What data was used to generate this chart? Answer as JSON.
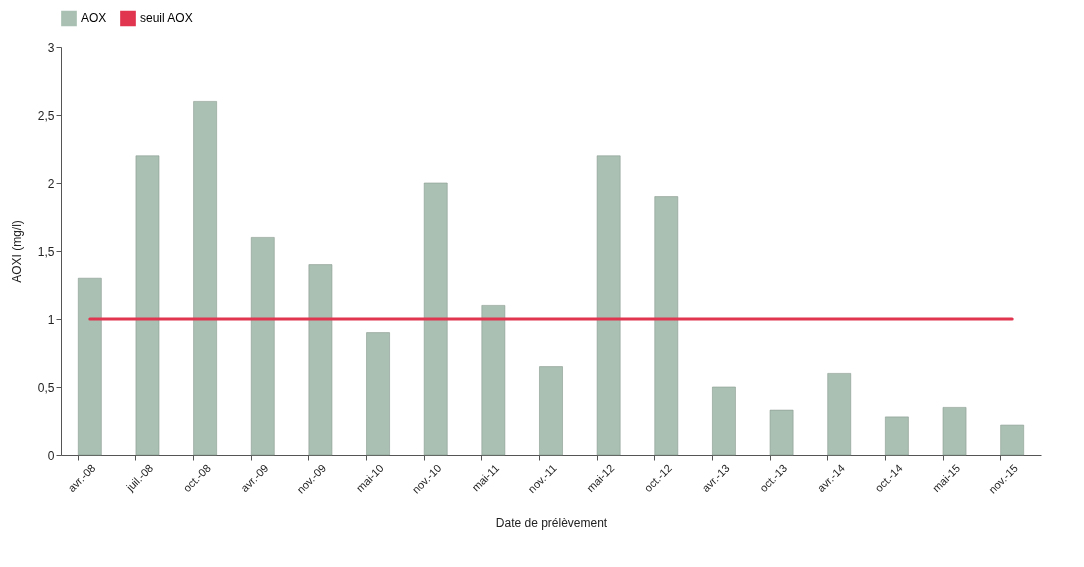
{
  "chart_data": {
    "type": "bar",
    "xlabel": "Date de prélèvement",
    "ylabel": "AOXI (mg/l)",
    "categories": [
      "avr.-08",
      "juil.-08",
      "oct.-08",
      "avr.-09",
      "nov.-09",
      "mai-10",
      "nov.-10",
      "mai-11",
      "nov.-11",
      "mai-12",
      "oct.-12",
      "avr.-13",
      "oct.-13",
      "avr.-14",
      "oct.-14",
      "mai-15",
      "nov.-15"
    ],
    "series": [
      {
        "name": "AOX",
        "color": "#a9c0b2",
        "values": [
          1.3,
          2.2,
          2.6,
          1.6,
          1.4,
          0.9,
          2.0,
          1.1,
          0.65,
          2.2,
          1.9,
          0.5,
          0.33,
          0.6,
          0.28,
          0.35,
          0.22
        ]
      },
      {
        "name": "seuil AOX",
        "type": "line",
        "color": "#e0344f",
        "values": [
          1,
          1,
          1,
          1,
          1,
          1,
          1,
          1,
          1,
          1,
          1,
          1,
          1,
          1,
          1,
          1,
          1
        ]
      }
    ],
    "ylim": [
      0,
      3
    ],
    "yticks": [
      0,
      {
        "value": 0.5,
        "label": "0,5"
      },
      1,
      {
        "value": 1.5,
        "label": "1,5"
      },
      2,
      {
        "value": 2.5,
        "label": "2,5"
      },
      3
    ],
    "grid": false,
    "legend": "top",
    "marker": "none"
  }
}
